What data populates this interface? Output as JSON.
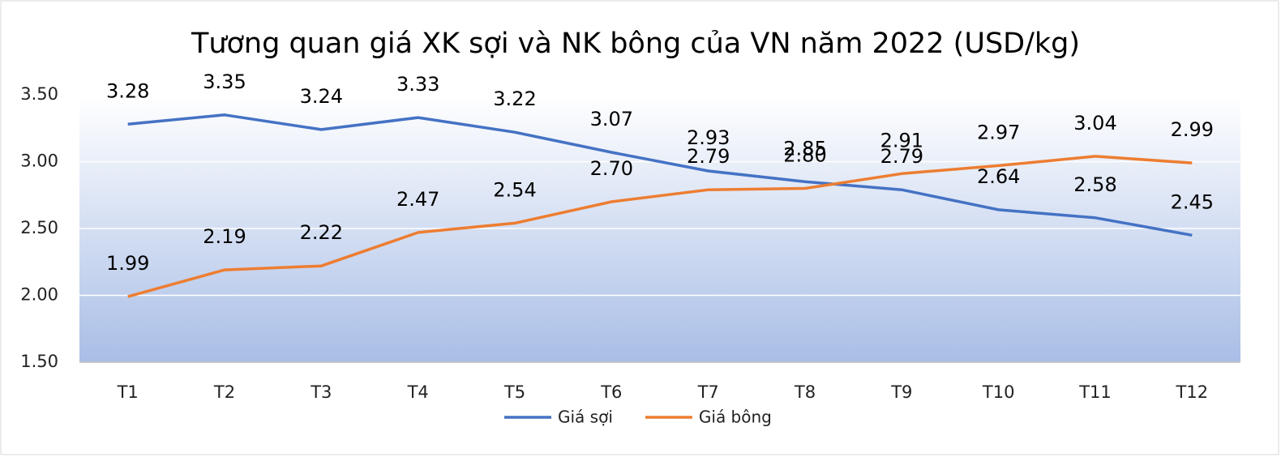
{
  "chart_data": {
    "type": "line",
    "title": "Tương quan giá XK sợi và NK bông của VN năm 2022 (USD/kg)",
    "categories": [
      "T1",
      "T2",
      "T3",
      "T4",
      "T5",
      "T6",
      "T7",
      "T8",
      "T9",
      "T10",
      "T11",
      "T12"
    ],
    "series": [
      {
        "name": "Giá sợi",
        "color": "#4472c4",
        "values": [
          3.28,
          3.35,
          3.24,
          3.33,
          3.22,
          3.07,
          2.93,
          2.85,
          2.79,
          2.64,
          2.58,
          2.45
        ],
        "value_labels": [
          "3.28",
          "3.35",
          "3.24",
          "3.33",
          "3.22",
          "3.07",
          "2.93",
          "2.85",
          "2.79",
          "2.64",
          "2.58",
          "2.45"
        ]
      },
      {
        "name": "Giá bông",
        "color": "#ed7d31",
        "values": [
          1.99,
          2.19,
          2.22,
          2.47,
          2.54,
          2.7,
          2.79,
          2.8,
          2.91,
          2.97,
          3.04,
          2.99
        ],
        "value_labels": [
          "1.99",
          "2.19",
          "2.22",
          "2.47",
          "2.54",
          "2.70",
          "2.79",
          "2.80",
          "2.91",
          "2.97",
          "3.04",
          "2.99"
        ]
      }
    ],
    "ylim": [
      1.5,
      3.5
    ],
    "yticks": [
      {
        "value": 1.5,
        "label": "1.50"
      },
      {
        "value": 2,
        "label": "2.00"
      },
      {
        "value": 2.5,
        "label": "2.50"
      },
      {
        "value": 3,
        "label": "3.00"
      },
      {
        "value": 3.5,
        "label": "3.50"
      }
    ],
    "grid": true,
    "legend": "bottom"
  }
}
